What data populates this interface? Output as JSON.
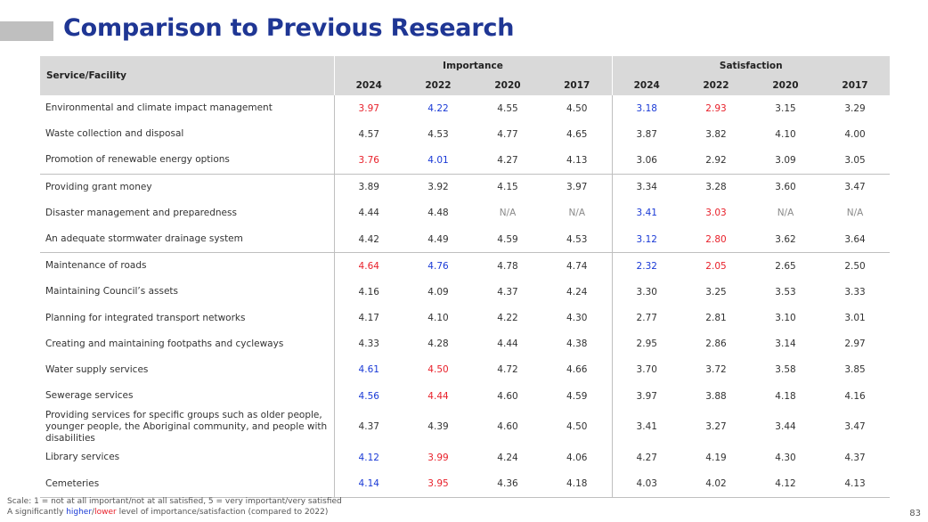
{
  "title": "Comparison to Previous Research",
  "table": {
    "label_header": "Service/Facility",
    "groups": [
      "Importance",
      "Satisfaction"
    ],
    "years": [
      "2024",
      "2022",
      "2020",
      "2017",
      "2024",
      "2022",
      "2020",
      "2017"
    ],
    "rows": [
      {
        "label": "Environmental and climate impact management",
        "group_start": true,
        "cells": [
          {
            "v": "3.97",
            "s": "lo"
          },
          {
            "v": "4.22",
            "s": "hi"
          },
          {
            "v": "4.55"
          },
          {
            "v": "4.50"
          },
          {
            "v": "3.18",
            "s": "hi"
          },
          {
            "v": "2.93",
            "s": "lo"
          },
          {
            "v": "3.15"
          },
          {
            "v": "3.29"
          }
        ]
      },
      {
        "label": "Waste collection and disposal",
        "cells": [
          {
            "v": "4.57"
          },
          {
            "v": "4.53"
          },
          {
            "v": "4.77"
          },
          {
            "v": "4.65"
          },
          {
            "v": "3.87"
          },
          {
            "v": "3.82"
          },
          {
            "v": "4.10"
          },
          {
            "v": "4.00"
          }
        ]
      },
      {
        "label": "Promotion of renewable energy options",
        "cells": [
          {
            "v": "3.76",
            "s": "lo"
          },
          {
            "v": "4.01",
            "s": "hi"
          },
          {
            "v": "4.27"
          },
          {
            "v": "4.13"
          },
          {
            "v": "3.06"
          },
          {
            "v": "2.92"
          },
          {
            "v": "3.09"
          },
          {
            "v": "3.05"
          }
        ]
      },
      {
        "label": "Providing grant money",
        "group_start": true,
        "cells": [
          {
            "v": "3.89"
          },
          {
            "v": "3.92"
          },
          {
            "v": "4.15"
          },
          {
            "v": "3.97"
          },
          {
            "v": "3.34"
          },
          {
            "v": "3.28"
          },
          {
            "v": "3.60"
          },
          {
            "v": "3.47"
          }
        ]
      },
      {
        "label": "Disaster management and preparedness",
        "cells": [
          {
            "v": "4.44"
          },
          {
            "v": "4.48"
          },
          {
            "v": "N/A",
            "s": "na"
          },
          {
            "v": "N/A",
            "s": "na"
          },
          {
            "v": "3.41",
            "s": "hi"
          },
          {
            "v": "3.03",
            "s": "lo"
          },
          {
            "v": "N/A",
            "s": "na"
          },
          {
            "v": "N/A",
            "s": "na"
          }
        ]
      },
      {
        "label": "An adequate stormwater drainage system",
        "cells": [
          {
            "v": "4.42"
          },
          {
            "v": "4.49"
          },
          {
            "v": "4.59"
          },
          {
            "v": "4.53"
          },
          {
            "v": "3.12",
            "s": "hi"
          },
          {
            "v": "2.80",
            "s": "lo"
          },
          {
            "v": "3.62"
          },
          {
            "v": "3.64"
          }
        ]
      },
      {
        "label": "Maintenance of roads",
        "group_start": true,
        "cells": [
          {
            "v": "4.64",
            "s": "lo"
          },
          {
            "v": "4.76",
            "s": "hi"
          },
          {
            "v": "4.78"
          },
          {
            "v": "4.74"
          },
          {
            "v": "2.32",
            "s": "hi"
          },
          {
            "v": "2.05",
            "s": "lo"
          },
          {
            "v": "2.65"
          },
          {
            "v": "2.50"
          }
        ]
      },
      {
        "label": "Maintaining Council’s assets",
        "cells": [
          {
            "v": "4.16"
          },
          {
            "v": "4.09"
          },
          {
            "v": "4.37"
          },
          {
            "v": "4.24"
          },
          {
            "v": "3.30"
          },
          {
            "v": "3.25"
          },
          {
            "v": "3.53"
          },
          {
            "v": "3.33"
          }
        ]
      },
      {
        "label": "Planning for integrated transport networks",
        "cells": [
          {
            "v": "4.17"
          },
          {
            "v": "4.10"
          },
          {
            "v": "4.22"
          },
          {
            "v": "4.30"
          },
          {
            "v": "2.77"
          },
          {
            "v": "2.81"
          },
          {
            "v": "3.10"
          },
          {
            "v": "3.01"
          }
        ]
      },
      {
        "label": "Creating and maintaining footpaths and cycleways",
        "cells": [
          {
            "v": "4.33"
          },
          {
            "v": "4.28"
          },
          {
            "v": "4.44"
          },
          {
            "v": "4.38"
          },
          {
            "v": "2.95"
          },
          {
            "v": "2.86"
          },
          {
            "v": "3.14"
          },
          {
            "v": "2.97"
          }
        ]
      },
      {
        "label": "Water supply services",
        "cells": [
          {
            "v": "4.61",
            "s": "hi"
          },
          {
            "v": "4.50",
            "s": "lo"
          },
          {
            "v": "4.72"
          },
          {
            "v": "4.66"
          },
          {
            "v": "3.70"
          },
          {
            "v": "3.72"
          },
          {
            "v": "3.58"
          },
          {
            "v": "3.85"
          }
        ]
      },
      {
        "label": "Sewerage services",
        "cells": [
          {
            "v": "4.56",
            "s": "hi"
          },
          {
            "v": "4.44",
            "s": "lo"
          },
          {
            "v": "4.60"
          },
          {
            "v": "4.59"
          },
          {
            "v": "3.97"
          },
          {
            "v": "3.88"
          },
          {
            "v": "4.18"
          },
          {
            "v": "4.16"
          }
        ]
      },
      {
        "label": "Providing services for specific groups such as older people, younger people, the Aboriginal community, and people with disabilities",
        "tall": true,
        "cells": [
          {
            "v": "4.37"
          },
          {
            "v": "4.39"
          },
          {
            "v": "4.60"
          },
          {
            "v": "4.50"
          },
          {
            "v": "3.41"
          },
          {
            "v": "3.27"
          },
          {
            "v": "3.44"
          },
          {
            "v": "3.47"
          }
        ]
      },
      {
        "label": "Library services",
        "cells": [
          {
            "v": "4.12",
            "s": "hi"
          },
          {
            "v": "3.99",
            "s": "lo"
          },
          {
            "v": "4.24"
          },
          {
            "v": "4.06"
          },
          {
            "v": "4.27"
          },
          {
            "v": "4.19"
          },
          {
            "v": "4.30"
          },
          {
            "v": "4.37"
          }
        ]
      },
      {
        "label": "Cemeteries",
        "last": true,
        "cells": [
          {
            "v": "4.14",
            "s": "hi"
          },
          {
            "v": "3.95",
            "s": "lo"
          },
          {
            "v": "4.36"
          },
          {
            "v": "4.18"
          },
          {
            "v": "4.03"
          },
          {
            "v": "4.02"
          },
          {
            "v": "4.12"
          },
          {
            "v": "4.13"
          }
        ]
      }
    ]
  },
  "footnote": {
    "scale": "Scale: 1 = not at all important/not at all satisfied, 5 = very important/very satisfied",
    "legend_prefix": "A significantly ",
    "legend_higher": "higher",
    "legend_slash": "/",
    "legend_lower": "lower",
    "legend_suffix": " level of importance/satisfaction (compared to 2022)"
  },
  "page_number": "83",
  "colors": {
    "title": "#1f3694",
    "higher": "#1a3ad6",
    "lower": "#e8202a",
    "header_bg": "#d9d9d9"
  }
}
